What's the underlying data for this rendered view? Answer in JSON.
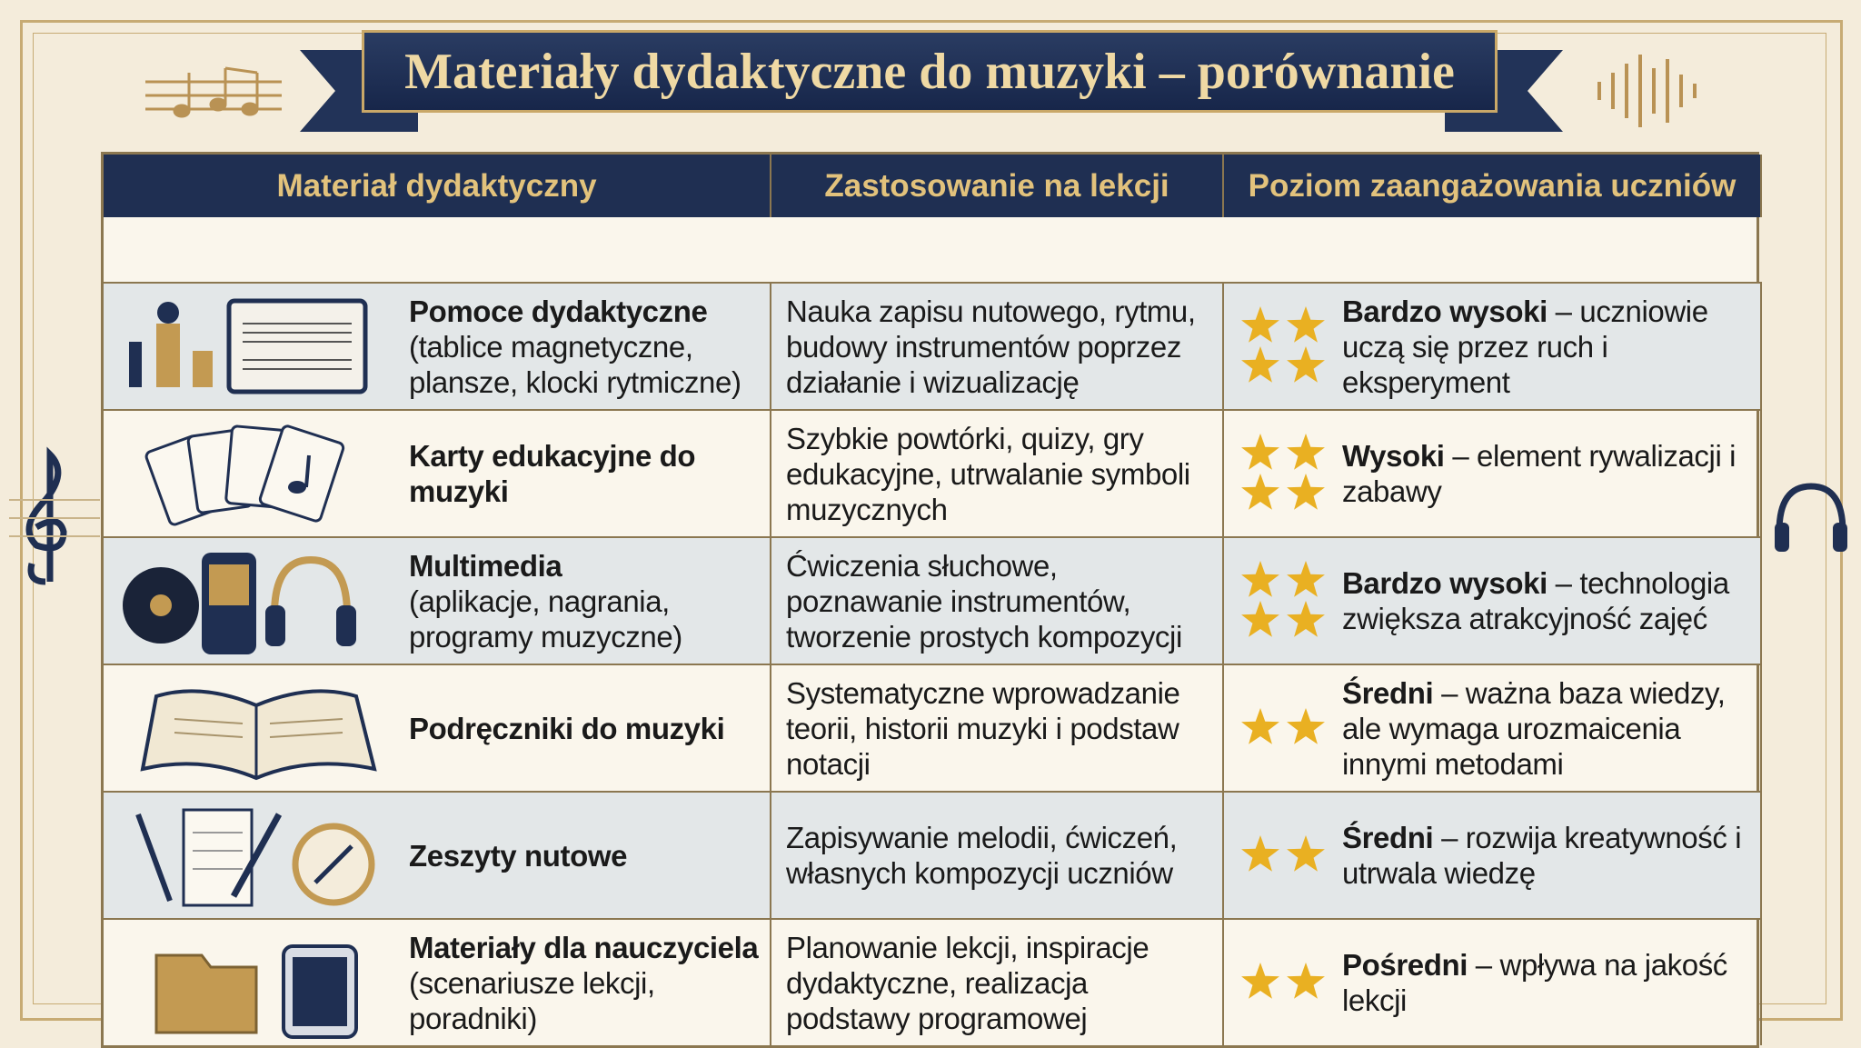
{
  "header": {
    "title": "Materiały dydaktyczne do muzyki – porównanie"
  },
  "table": {
    "columns": [
      "Materiał dydaktyczny",
      "Zastosowanie na lekcji",
      "Poziom zaangażowania uczniów"
    ],
    "rows": [
      {
        "material": {
          "name": "Pomoce dydaktyczne",
          "details": "(tablice magnetyczne, plansze, klocki rytmiczne)"
        },
        "usage": "Nauka zapisu nutowego, rytmu, budowy instrumentów poprzez działanie i wizualizację",
        "level": {
          "name": "Bardzo wysoki",
          "description": "– uczniowie uczą się przez ruch i eksperyment"
        },
        "stars": 4
      },
      {
        "material": {
          "name": "Karty edukacyjne do muzyki",
          "details": null
        },
        "usage": "Szybkie powtórki, quizy, gry edukacyjne, utrwalanie symboli muzycznych",
        "level": {
          "name": "Wysoki",
          "description": "– element rywalizacji i zabawy"
        },
        "stars": 4
      },
      {
        "material": {
          "name": "Multimedia",
          "details": "(aplikacje, nagrania, programy muzyczne)"
        },
        "usage": "Ćwiczenia słuchowe, poznawanie instrumentów, tworzenie prostych kompozycji",
        "level": {
          "name": "Bardzo wysoki",
          "description": "– technologia zwiększa atrakcyjność zajęć"
        },
        "stars": 4
      },
      {
        "material": {
          "name": "Podręczniki do muzyki",
          "details": null
        },
        "usage": "Systematyczne wprowadzanie teorii, historii muzyki i podstaw notacji",
        "level": {
          "name": "Średni",
          "description": "– ważna baza wiedzy, ale wymaga urozmaicenia innymi metodami"
        },
        "stars": 2
      },
      {
        "material": {
          "name": "Zeszyty nutowe",
          "details": null
        },
        "usage": "Zapisywanie melodii, ćwiczeń, własnych kompozycji uczniów",
        "level": {
          "name": "Średni",
          "description": "– rozwija kreatywność i utrwala wiedzę"
        },
        "stars": 2
      },
      {
        "material": {
          "name": "Materiały dla nauczyciela",
          "details": "(scenariusze lekcji, poradniki)"
        },
        "usage": "Planowanie lekcji, inspiracje dydaktyczne, realizacja podstawy programowej",
        "level": {
          "name": "Pośredni",
          "description": "– wpływa na jakość lekcji"
        },
        "stars": 2
      }
    ]
  }
}
